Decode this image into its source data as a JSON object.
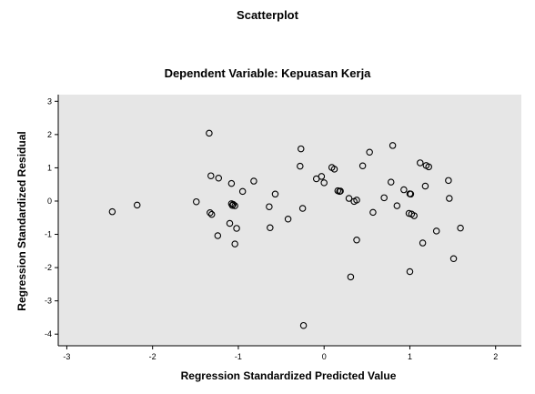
{
  "chart_data": {
    "type": "scatter",
    "title": "Scatterplot",
    "subtitle": "Dependent Variable: Kepuasan Kerja",
    "xlabel": "Regression Standardized Predicted Value",
    "ylabel": "Regression Standardized Residual",
    "xlim": [
      -3.1,
      2.3
    ],
    "ylim": [
      -4.35,
      3.2
    ],
    "xticks": [
      -3,
      -2,
      -1,
      0,
      1,
      2
    ],
    "yticks": [
      3,
      2,
      1,
      0,
      -1,
      -2,
      -3,
      -4
    ],
    "grid": false,
    "plot_background": "#e6e6e6",
    "marker_color": "#000000",
    "points": [
      [
        -2.47,
        -0.32
      ],
      [
        -2.18,
        -0.12
      ],
      [
        -1.49,
        -0.02
      ],
      [
        -1.34,
        2.04
      ],
      [
        -1.32,
        0.76
      ],
      [
        -1.33,
        -0.35
      ],
      [
        -1.31,
        -0.4
      ],
      [
        -1.23,
        0.69
      ],
      [
        -1.24,
        -1.04
      ],
      [
        -1.1,
        -0.67
      ],
      [
        -1.08,
        0.53
      ],
      [
        -1.08,
        -0.08
      ],
      [
        -1.07,
        -0.13
      ],
      [
        -1.06,
        -0.1
      ],
      [
        -1.04,
        -0.14
      ],
      [
        -1.04,
        -1.29
      ],
      [
        -1.02,
        -0.82
      ],
      [
        -0.95,
        0.29
      ],
      [
        -0.82,
        0.6
      ],
      [
        -0.64,
        -0.17
      ],
      [
        -0.63,
        -0.8
      ],
      [
        -0.57,
        0.21
      ],
      [
        -0.42,
        -0.54
      ],
      [
        -0.28,
        1.05
      ],
      [
        -0.27,
        1.57
      ],
      [
        -0.25,
        -0.22
      ],
      [
        -0.24,
        -3.74
      ],
      [
        -0.09,
        0.67
      ],
      [
        -0.03,
        0.74
      ],
      [
        0.0,
        0.55
      ],
      [
        0.09,
        1.01
      ],
      [
        0.12,
        0.96
      ],
      [
        0.16,
        0.31
      ],
      [
        0.18,
        0.29
      ],
      [
        0.19,
        0.3
      ],
      [
        0.29,
        0.08
      ],
      [
        0.31,
        -2.28
      ],
      [
        0.35,
        -0.01
      ],
      [
        0.38,
        0.03
      ],
      [
        0.38,
        -1.17
      ],
      [
        0.45,
        1.06
      ],
      [
        0.53,
        1.47
      ],
      [
        0.57,
        -0.34
      ],
      [
        0.7,
        0.1
      ],
      [
        0.78,
        0.57
      ],
      [
        0.8,
        1.67
      ],
      [
        0.85,
        -0.14
      ],
      [
        0.93,
        0.34
      ],
      [
        0.99,
        -0.37
      ],
      [
        1.0,
        0.22
      ],
      [
        1.01,
        0.21
      ],
      [
        1.02,
        -0.39
      ],
      [
        1.05,
        -0.44
      ],
      [
        1.0,
        -2.12
      ],
      [
        1.12,
        1.15
      ],
      [
        1.15,
        -1.26
      ],
      [
        1.18,
        0.45
      ],
      [
        1.19,
        1.07
      ],
      [
        1.22,
        1.03
      ],
      [
        1.31,
        -0.9
      ],
      [
        1.45,
        0.62
      ],
      [
        1.46,
        0.08
      ],
      [
        1.51,
        -1.73
      ],
      [
        1.59,
        -0.81
      ]
    ]
  }
}
